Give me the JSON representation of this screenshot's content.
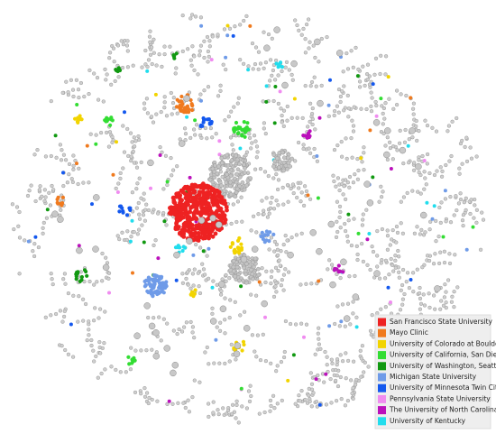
{
  "legend": {
    "items": [
      {
        "label": "San Francisco State University",
        "color": "#ee2222"
      },
      {
        "label": "Mayo Clinic",
        "color": "#f07a1e"
      },
      {
        "label": "University of Colorado at Boulder",
        "color": "#f2d400"
      },
      {
        "label": "University of California, San Diego",
        "color": "#33dd33"
      },
      {
        "label": "University of Washington, Seattle",
        "color": "#119911"
      },
      {
        "label": "Michigan State University",
        "color": "#6f9be8"
      },
      {
        "label": "University of Minnesota Twin Cities",
        "color": "#1458ee"
      },
      {
        "label": "Pennsylvania State University",
        "color": "#f08cf0"
      },
      {
        "label": "The University of North Carolina",
        "color": "#bb11bb"
      },
      {
        "label": "University of Kentucky",
        "color": "#22dded"
      }
    ]
  }
}
